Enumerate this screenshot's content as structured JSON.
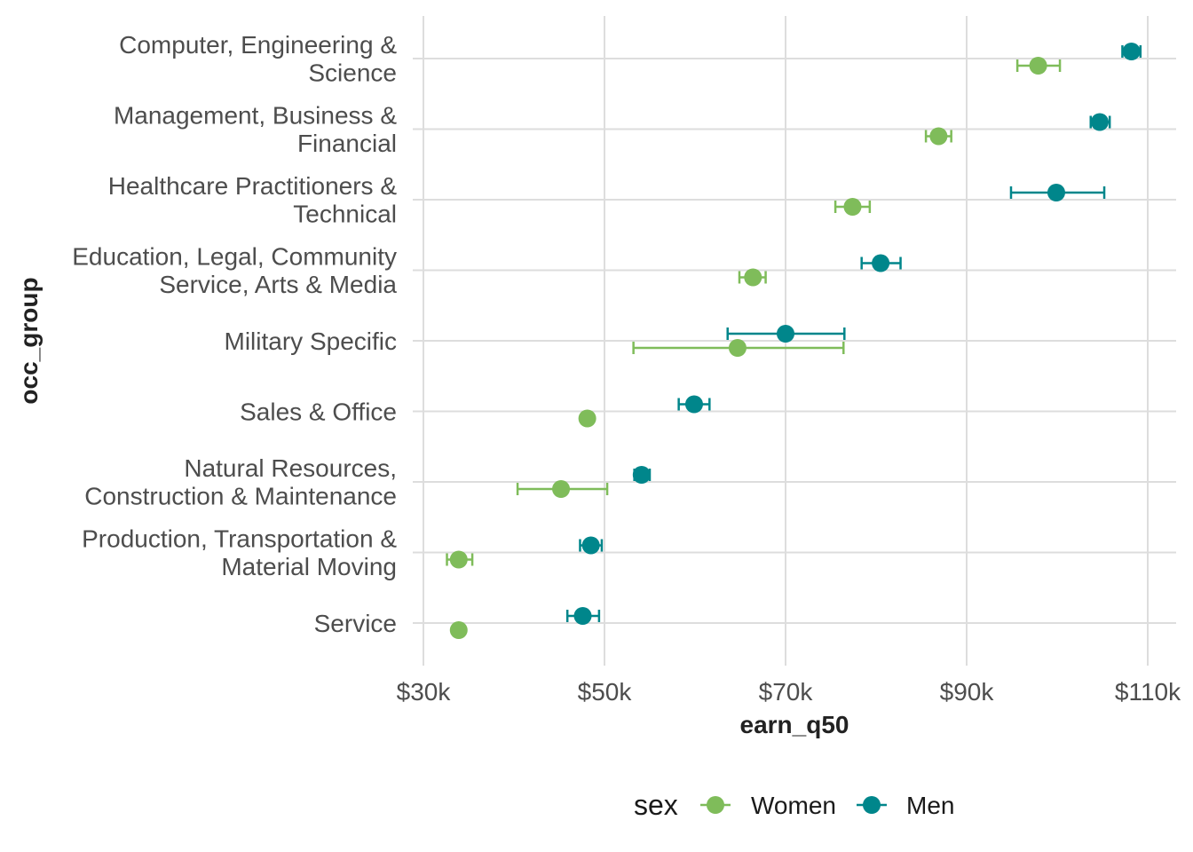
{
  "chart_data": {
    "type": "scatter",
    "xlabel": "earn_q50",
    "ylabel": "occ_group",
    "xlim": [
      30000,
      110000
    ],
    "x_ticks": [
      30000,
      50000,
      70000,
      90000,
      110000
    ],
    "x_tick_labels": [
      "$30k",
      "$50k",
      "$70k",
      "$90k",
      "$110k"
    ],
    "grid": true,
    "legend_placement": "bottom",
    "legend_title": "sex",
    "categories": [
      [
        "Computer, Engineering &",
        "Science"
      ],
      [
        "Management, Business &",
        "Financial"
      ],
      [
        "Healthcare Practitioners &",
        "Technical"
      ],
      [
        "Education, Legal, Community",
        "Service, Arts & Media"
      ],
      [
        "Military Specific"
      ],
      [
        "Sales & Office"
      ],
      [
        "Natural Resources,",
        "Construction & Maintenance"
      ],
      [
        "Production, Transportation &",
        "Material Moving"
      ],
      [
        "Service"
      ]
    ],
    "series": [
      {
        "name": "Women",
        "color": "#7fbc5a",
        "values": [
          97900,
          86900,
          77400,
          66400,
          64700,
          48100,
          45200,
          33900,
          33900
        ],
        "lower": [
          95600,
          85500,
          75500,
          64900,
          53200,
          48100,
          40400,
          32600,
          33900
        ],
        "upper": [
          100300,
          88300,
          79300,
          67800,
          76400,
          48100,
          50300,
          35400,
          33900
        ]
      },
      {
        "name": "Men",
        "color": "#00868b",
        "values": [
          108200,
          104700,
          99900,
          80500,
          70000,
          59900,
          54100,
          48500,
          47600
        ],
        "lower": [
          107200,
          103700,
          94900,
          78400,
          63600,
          58200,
          53300,
          47300,
          45900
        ],
        "upper": [
          109200,
          105800,
          105200,
          82700,
          76500,
          61600,
          55000,
          49700,
          49400
        ]
      }
    ]
  }
}
